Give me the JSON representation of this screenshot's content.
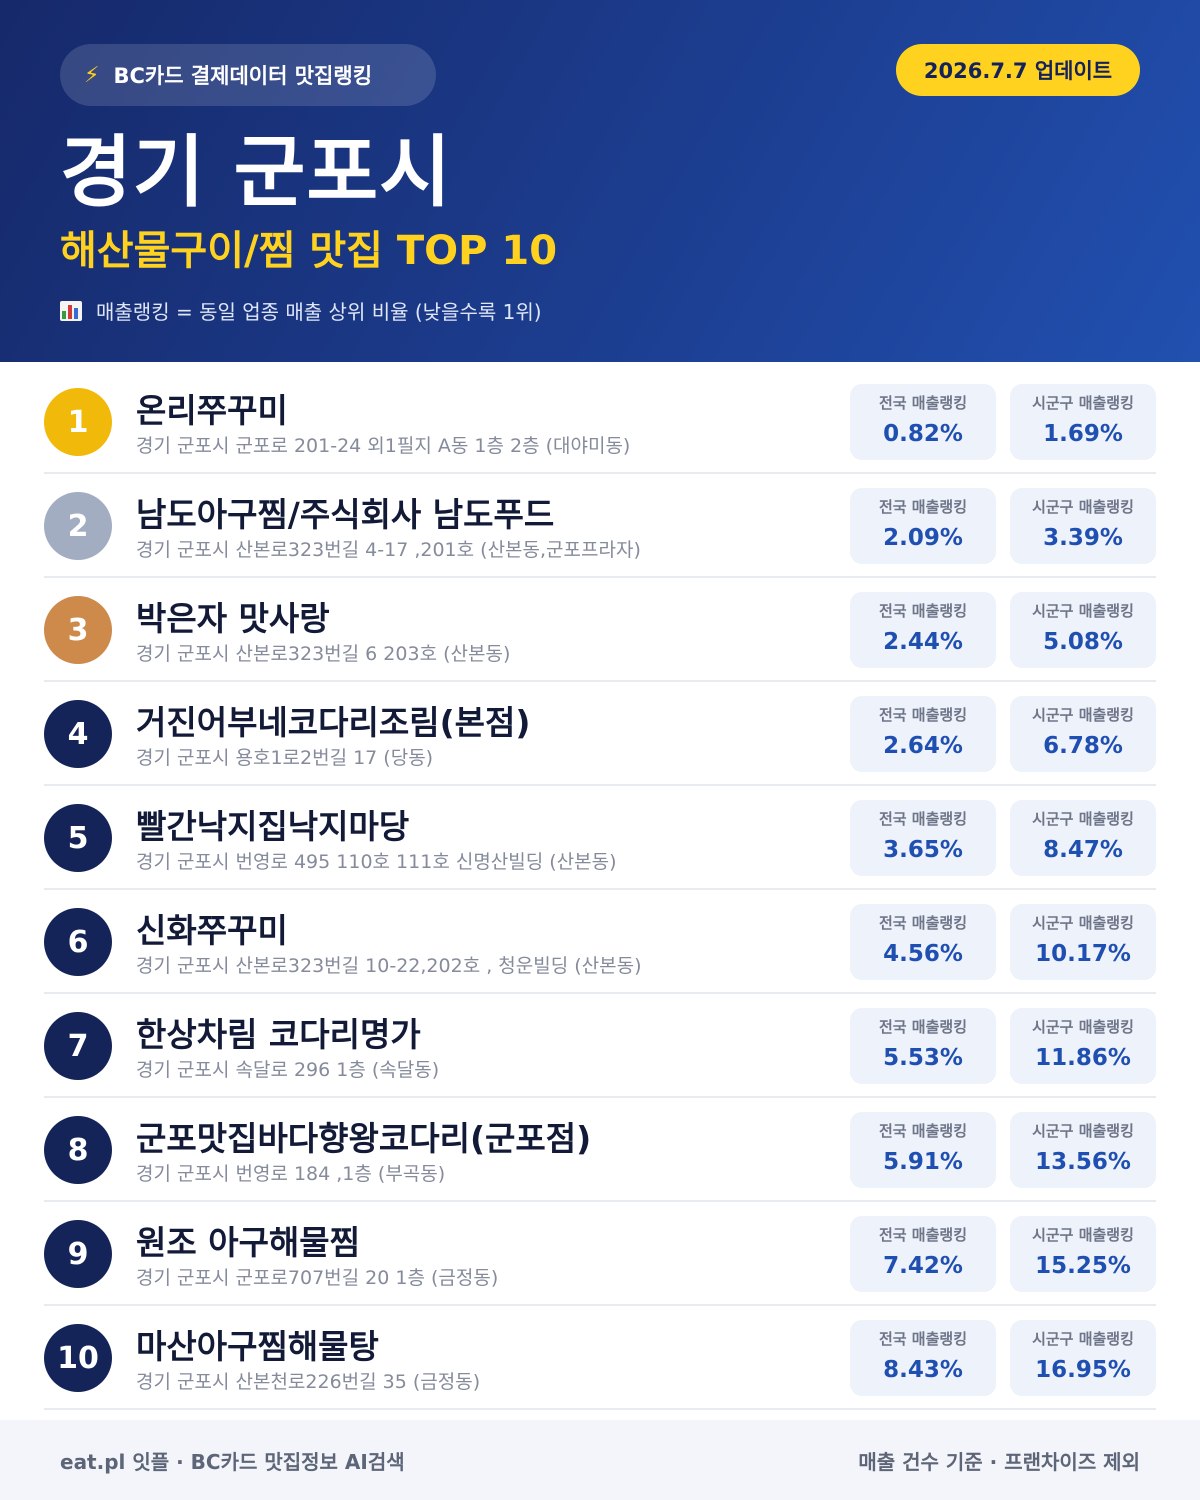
{
  "header": {
    "badge_icon": "lightning-icon",
    "badge_text": "BC카드 결제데이터 맛집랭킹",
    "update_text": "2026.7.7 업데이트",
    "title": "경기 군포시",
    "subtitle": "해산물구이/찜 맛집 TOP 10",
    "note_icon": "bar-chart-icon",
    "note": "매출랭킹 = 동일 업종 매출 상위 비율 (낮을수록 1위)"
  },
  "labels": {
    "national": "전국 매출랭킹",
    "local": "시군구 매출랭킹"
  },
  "colors": {
    "gold": "#f1b90a",
    "silver": "#a3adc2",
    "bronze": "#cd8a4b",
    "navy": "#152458",
    "accent_yellow": "#ffd21f",
    "value_blue": "#1f4fb0"
  },
  "restaurants": [
    {
      "rank": "1",
      "name": "온리쭈꾸미",
      "address": "경기 군포시 군포로 201-24 외1필지 A동 1층 2층 (대야미동)",
      "national": "0.82%",
      "local": "1.69%"
    },
    {
      "rank": "2",
      "name": "남도아구찜/주식회사 남도푸드",
      "address": "경기 군포시 산본로323번길 4-17 ,201호 (산본동,군포프라자)",
      "national": "2.09%",
      "local": "3.39%"
    },
    {
      "rank": "3",
      "name": "박은자 맛사랑",
      "address": "경기 군포시 산본로323번길 6 203호 (산본동)",
      "national": "2.44%",
      "local": "5.08%"
    },
    {
      "rank": "4",
      "name": "거진어부네코다리조림(본점)",
      "address": "경기 군포시 용호1로2번길 17 (당동)",
      "national": "2.64%",
      "local": "6.78%"
    },
    {
      "rank": "5",
      "name": "빨간낙지집낙지마당",
      "address": "경기 군포시 번영로 495 110호 111호 신명산빌딩 (산본동)",
      "national": "3.65%",
      "local": "8.47%"
    },
    {
      "rank": "6",
      "name": "신화쭈꾸미",
      "address": "경기 군포시 산본로323번길 10-22,202호 , 청운빌딩 (산본동)",
      "national": "4.56%",
      "local": "10.17%"
    },
    {
      "rank": "7",
      "name": "한상차림 코다리명가",
      "address": "경기 군포시 속달로 296 1층 (속달동)",
      "national": "5.53%",
      "local": "11.86%"
    },
    {
      "rank": "8",
      "name": "군포맛집바다향왕코다리(군포점)",
      "address": "경기 군포시 번영로 184 ,1층 (부곡동)",
      "national": "5.91%",
      "local": "13.56%"
    },
    {
      "rank": "9",
      "name": "원조 아구해물찜",
      "address": "경기 군포시 군포로707번길 20 1층 (금정동)",
      "national": "7.42%",
      "local": "15.25%"
    },
    {
      "rank": "10",
      "name": "마산아구찜해물탕",
      "address": "경기 군포시 산본천로226번길 35 (금정동)",
      "national": "8.43%",
      "local": "16.95%"
    }
  ],
  "footer": {
    "left": "eat.pl 잇플 · BC카드 맛집정보 AI검색",
    "right": "매출 건수 기준 · 프랜차이즈 제외"
  }
}
